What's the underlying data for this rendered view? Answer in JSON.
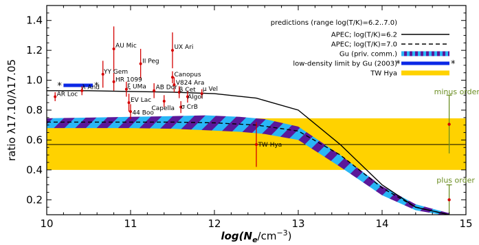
{
  "chart_data": {
    "type": "scatter",
    "xlabel": "log(N_e/cm^-3)",
    "xlabel_parts": {
      "pre": "log(N",
      "sub": "e",
      "mid": "/cm",
      "sup": "−3",
      "post": ")"
    },
    "ylabel": "ratio λ17.10/λ17.05",
    "xlim": [
      10,
      15
    ],
    "ylim": [
      0.1,
      1.5
    ],
    "xticks": [
      "10",
      "11",
      "12",
      "13",
      "14",
      "15"
    ],
    "yticks": [
      "0.2",
      "0.4",
      "0.6",
      "0.8",
      "1.0",
      "1.2",
      "1.4"
    ],
    "legend": {
      "title": "predictions (range log(T/K)=6.2..7.0)",
      "entries": [
        {
          "label": "APEC; log(T/K)=6.2",
          "style": "solid",
          "color": "#000000"
        },
        {
          "label": "APEC; log(T/K)=7.0",
          "style": "dashed",
          "color": "#000000"
        },
        {
          "label": "Gu (priv. comm.)",
          "style": "striped",
          "color": "#29b6f6",
          "color2": "#5a189a"
        },
        {
          "label": "low-density limit by Gu (2003)",
          "style": "bar-star",
          "color": "#0b28e6"
        },
        {
          "label": "TW Hya",
          "style": "band",
          "color": "#ffd200"
        }
      ]
    },
    "tw_hya": {
      "center": 0.57,
      "low": 0.4,
      "high": 0.745,
      "color": "#ffd200"
    },
    "low_density_limit": {
      "x": [
        10.2,
        10.55
      ],
      "y": 0.966,
      "color": "#0b28e6"
    },
    "apec_62": {
      "x": [
        10,
        10.5,
        11,
        11.5,
        12,
        12.5,
        13,
        13.5,
        14,
        14.4,
        14.8
      ],
      "y": [
        0.93,
        0.93,
        0.925,
        0.92,
        0.91,
        0.88,
        0.8,
        0.57,
        0.3,
        0.15,
        0.1
      ]
    },
    "apec_70": {
      "x": [
        10,
        10.5,
        11,
        11.5,
        12,
        12.5,
        13,
        13.5,
        14,
        14.4,
        14.8
      ],
      "y": [
        0.72,
        0.72,
        0.72,
        0.72,
        0.715,
        0.7,
        0.66,
        0.5,
        0.28,
        0.15,
        0.1
      ]
    },
    "gu_band": {
      "x": [
        10,
        10.5,
        11,
        11.5,
        11.9,
        12.3,
        12.6,
        13,
        13.5,
        14,
        14.4,
        14.8
      ],
      "upper": [
        0.745,
        0.75,
        0.755,
        0.76,
        0.765,
        0.755,
        0.74,
        0.69,
        0.5,
        0.29,
        0.17,
        0.11
      ],
      "lower": [
        0.68,
        0.68,
        0.68,
        0.675,
        0.665,
        0.655,
        0.64,
        0.6,
        0.42,
        0.23,
        0.13,
        0.09
      ]
    },
    "stars": [
      {
        "name": "AR Loc",
        "x": 10.1,
        "y": 0.89,
        "err": 0.03,
        "lx": 10.12,
        "ly": 0.895,
        "anchor": "start"
      },
      {
        "name": "λ And",
        "x": 10.42,
        "y": 0.93,
        "err": 0.03,
        "lx": 10.42,
        "ly": 0.94,
        "anchor": "start"
      },
      {
        "name": "AU Mic",
        "x": 10.8,
        "y": 1.21,
        "err": 0.15,
        "lx": 10.82,
        "ly": 1.22,
        "anchor": "start"
      },
      {
        "name": "HR 1099",
        "x": 10.8,
        "y": 0.99,
        "err": 0.06,
        "lx": 10.82,
        "ly": 0.99,
        "anchor": "start"
      },
      {
        "name": "YY Gem",
        "x": 10.67,
        "y": 1.04,
        "err": 0.09,
        "lx": 10.68,
        "ly": 1.045,
        "anchor": "start"
      },
      {
        "name": "ξ UMa",
        "x": 10.95,
        "y": 0.94,
        "err": 0.05,
        "lx": 10.96,
        "ly": 0.945,
        "anchor": "start"
      },
      {
        "name": "EV Lac",
        "x": 10.98,
        "y": 0.85,
        "err": 0.06,
        "lx": 11.0,
        "ly": 0.855,
        "anchor": "start"
      },
      {
        "name": "44 Boo",
        "x": 11.0,
        "y": 0.79,
        "err": 0.05,
        "lx": 11.02,
        "ly": 0.77,
        "anchor": "start"
      },
      {
        "name": "II Peg",
        "x": 11.12,
        "y": 1.11,
        "err": 0.1,
        "lx": 11.14,
        "ly": 1.115,
        "anchor": "start"
      },
      {
        "name": "AB Dor",
        "x": 11.28,
        "y": 0.93,
        "err": 0.05,
        "lx": 11.3,
        "ly": 0.94,
        "anchor": "start"
      },
      {
        "name": "Capella",
        "x": 11.4,
        "y": 0.86,
        "err": 0.04,
        "lx": 11.25,
        "ly": 0.8,
        "anchor": "start"
      },
      {
        "name": "UX Ari",
        "x": 11.5,
        "y": 1.2,
        "err": 0.12,
        "lx": 11.52,
        "ly": 1.21,
        "anchor": "start"
      },
      {
        "name": "Canopus",
        "x": 11.5,
        "y": 1.02,
        "err": 0.04,
        "lx": 11.52,
        "ly": 1.025,
        "anchor": "start"
      },
      {
        "name": "V824 Ara",
        "x": 11.52,
        "y": 0.97,
        "err": 0.05,
        "lx": 11.54,
        "ly": 0.97,
        "anchor": "start"
      },
      {
        "name": "β Cet",
        "x": 11.58,
        "y": 0.92,
        "err": 0.04,
        "lx": 11.58,
        "ly": 0.925,
        "anchor": "start"
      },
      {
        "name": "Algol",
        "x": 11.68,
        "y": 0.89,
        "err": 0.04,
        "lx": 11.68,
        "ly": 0.875,
        "anchor": "start"
      },
      {
        "name": "σ CrB",
        "x": 11.6,
        "y": 0.82,
        "err": 0.04,
        "lx": 11.6,
        "ly": 0.81,
        "anchor": "start"
      },
      {
        "name": "μ Vel",
        "x": 11.85,
        "y": 0.91,
        "err": 0.03,
        "lx": 11.86,
        "ly": 0.93,
        "anchor": "start"
      },
      {
        "name": "TW Hya",
        "x": 12.5,
        "y": 0.57,
        "err": 0.15,
        "lx": 12.52,
        "ly": 0.555,
        "anchor": "start"
      }
    ],
    "orders": [
      {
        "label": "minus order",
        "x": 14.8,
        "y": 0.705,
        "ylow": 0.51,
        "yhigh": 0.9,
        "lx": 14.62,
        "ly": 0.905
      },
      {
        "label": "plus order",
        "x": 14.8,
        "y": 0.2,
        "ylow": 0.1,
        "yhigh": 0.3,
        "lx": 14.65,
        "ly": 0.315
      }
    ],
    "colors": {
      "error": "#d40000",
      "order_bar": "#6b8e23",
      "frame": "#000000"
    }
  }
}
